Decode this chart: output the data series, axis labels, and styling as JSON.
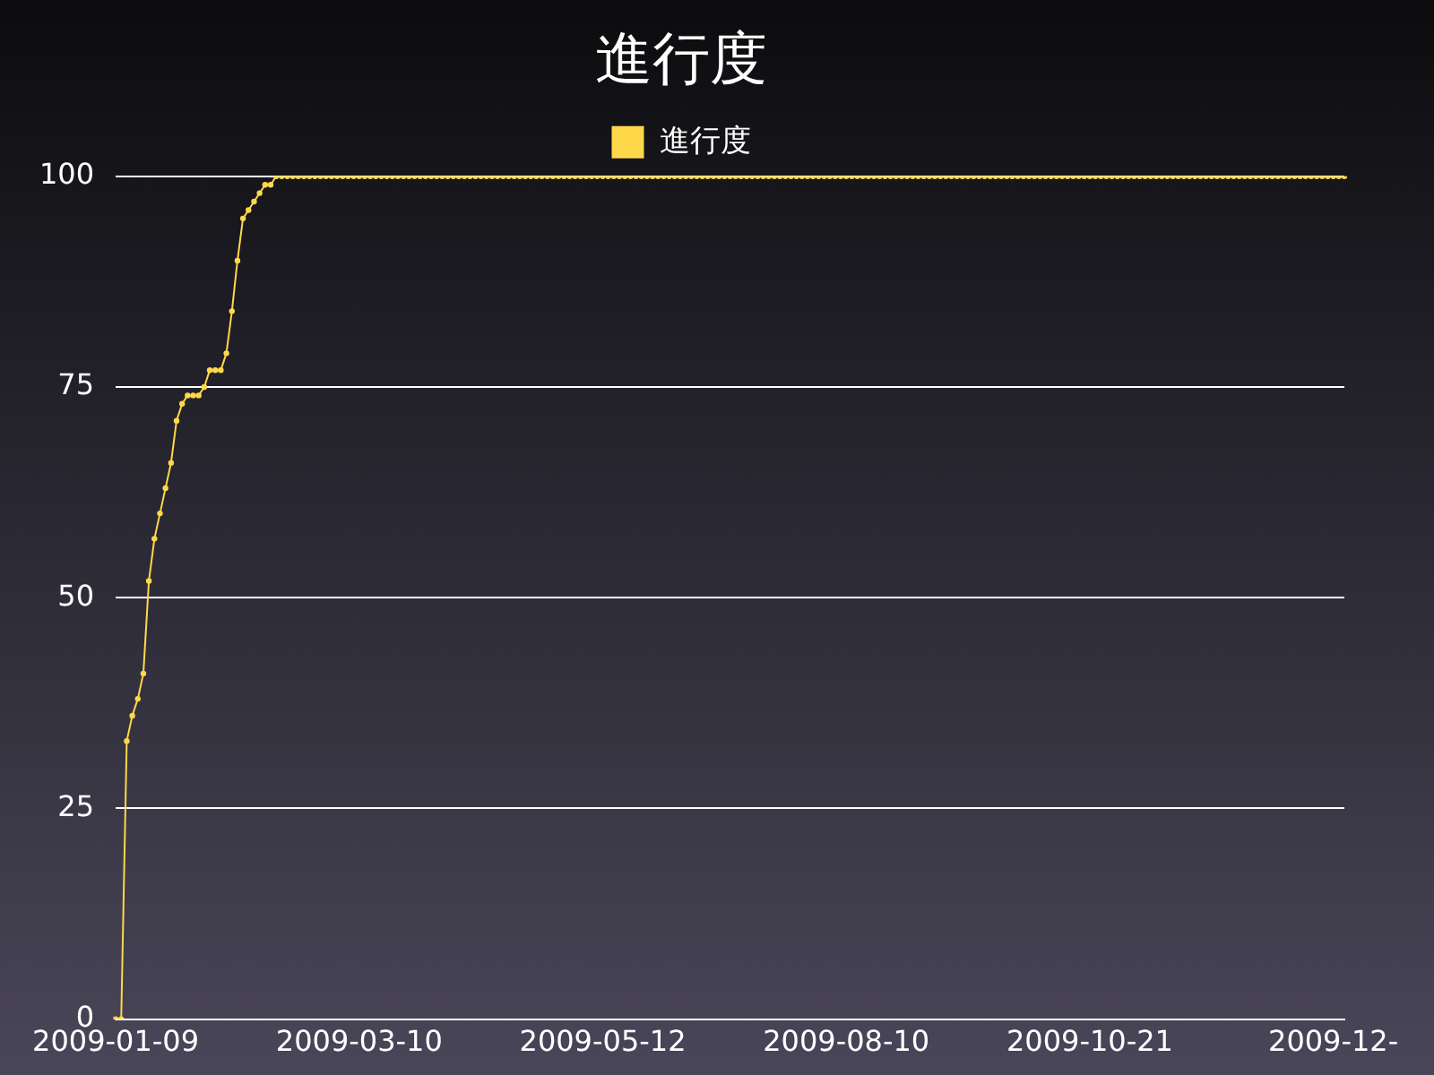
{
  "chart_data": {
    "type": "line",
    "title": "進行度",
    "categories": [
      "2009-01-09",
      null,
      null,
      null,
      null,
      null,
      null,
      null,
      null,
      null,
      null,
      null,
      null,
      null,
      null,
      null,
      null,
      null,
      null,
      null,
      null,
      null,
      null,
      null,
      null,
      null,
      null,
      null,
      null,
      null,
      null,
      null,
      null,
      null,
      null,
      null,
      null,
      null,
      null,
      null,
      null,
      null,
      null,
      null,
      "2009-03-10",
      null,
      null,
      null,
      null,
      null,
      null,
      null,
      null,
      null,
      null,
      null,
      null,
      null,
      null,
      null,
      null,
      null,
      null,
      null,
      null,
      null,
      null,
      null,
      null,
      null,
      null,
      null,
      null,
      null,
      null,
      null,
      null,
      null,
      null,
      null,
      null,
      null,
      null,
      null,
      null,
      null,
      null,
      null,
      "2009-05-12",
      null,
      null,
      null,
      null,
      null,
      null,
      null,
      null,
      null,
      null,
      null,
      null,
      null,
      null,
      null,
      null,
      null,
      null,
      null,
      null,
      null,
      null,
      null,
      null,
      null,
      null,
      null,
      null,
      null,
      null,
      null,
      null,
      null,
      null,
      null,
      null,
      null,
      null,
      null,
      null,
      null,
      null,
      null,
      "2009-08-10",
      null,
      null,
      null,
      null,
      null,
      null,
      null,
      null,
      null,
      null,
      null,
      null,
      null,
      null,
      null,
      null,
      null,
      null,
      null,
      null,
      null,
      null,
      null,
      null,
      null,
      null,
      null,
      null,
      null,
      null,
      null,
      null,
      null,
      null,
      null,
      null,
      null,
      null,
      null,
      null,
      null,
      null,
      null,
      "2009-10-21",
      null,
      null,
      null,
      null,
      null,
      null,
      null,
      null,
      null,
      null,
      null,
      null,
      null,
      null,
      null,
      null,
      null,
      null,
      null,
      null,
      null,
      null,
      null,
      null,
      null,
      null,
      null,
      null,
      null,
      null,
      null,
      null,
      null,
      null,
      null,
      null,
      null,
      null,
      null,
      null,
      null,
      null,
      null,
      "2009-12-",
      null,
      null
    ],
    "series": [
      {
        "name": "進行度",
        "color": "#ffd84a",
        "values": [
          0,
          0,
          33,
          36,
          38,
          41,
          52,
          57,
          60,
          63,
          66,
          71,
          73,
          74,
          74,
          74,
          75,
          77,
          77,
          77,
          79,
          84,
          90,
          95,
          96,
          97,
          98,
          99,
          99,
          100,
          100,
          100,
          100,
          100,
          100,
          100,
          100,
          100,
          100,
          100,
          100,
          100,
          100,
          100,
          100,
          100,
          100,
          100,
          100,
          100,
          100,
          100,
          100,
          100,
          100,
          100,
          100,
          100,
          100,
          100,
          100,
          100,
          100,
          100,
          100,
          100,
          100,
          100,
          100,
          100,
          100,
          100,
          100,
          100,
          100,
          100,
          100,
          100,
          100,
          100,
          100,
          100,
          100,
          100,
          100,
          100,
          100,
          100,
          100,
          100,
          100,
          100,
          100,
          100,
          100,
          100,
          100,
          100,
          100,
          100,
          100,
          100,
          100,
          100,
          100,
          100,
          100,
          100,
          100,
          100,
          100,
          100,
          100,
          100,
          100,
          100,
          100,
          100,
          100,
          100,
          100,
          100,
          100,
          100,
          100,
          100,
          100,
          100,
          100,
          100,
          100,
          100,
          100,
          100,
          100,
          100,
          100,
          100,
          100,
          100,
          100,
          100,
          100,
          100,
          100,
          100,
          100,
          100,
          100,
          100,
          100,
          100,
          100,
          100,
          100,
          100,
          100,
          100,
          100,
          100,
          100,
          100,
          100,
          100,
          100,
          100,
          100,
          100,
          100,
          100,
          100,
          100,
          100,
          100,
          100,
          100,
          100,
          100,
          100,
          100,
          100,
          100,
          100,
          100,
          100,
          100,
          100,
          100,
          100,
          100,
          100,
          100,
          100,
          100,
          100,
          100,
          100,
          100,
          100,
          100,
          100,
          100,
          100,
          100,
          100,
          100,
          100,
          100,
          100,
          100,
          100,
          100,
          100,
          100,
          100,
          100,
          100,
          100,
          100,
          100,
          100,
          100,
          100
        ]
      }
    ],
    "ylim": [
      0,
      100
    ],
    "yticks": [
      0,
      25,
      50,
      75,
      100
    ],
    "grid": "y",
    "legend": "top",
    "marker": "circle",
    "line_style": "solid"
  }
}
